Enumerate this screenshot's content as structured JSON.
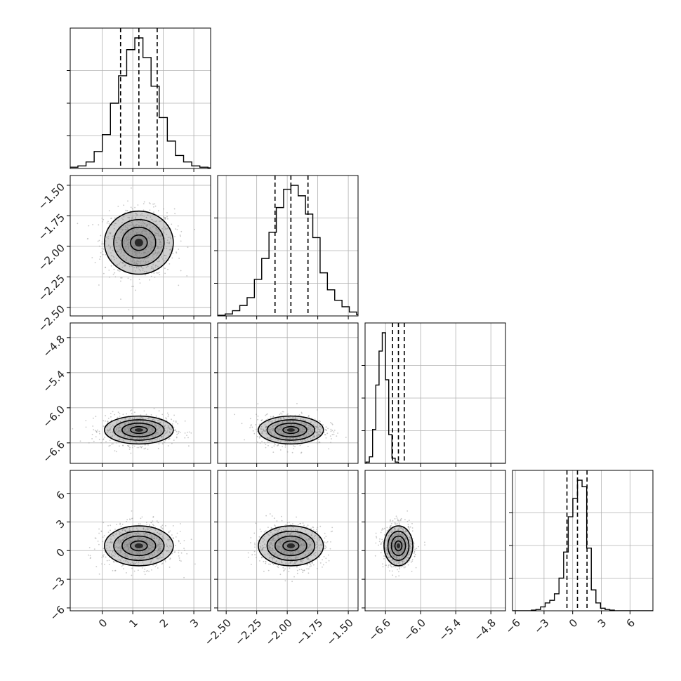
{
  "chart_data": {
    "type": "corner",
    "grid": true,
    "parameters": [
      {
        "ticks": [
          0,
          1,
          2,
          3
        ],
        "tick_labels": [
          "0",
          "1",
          "2",
          "3"
        ],
        "range": [
          -1.05,
          3.55
        ],
        "mean": 1.2,
        "std": 0.55,
        "quantiles": [
          0.6,
          1.2,
          1.8
        ],
        "hist_counts": [
          0.5,
          1,
          2,
          5,
          13,
          26,
          50,
          71,
          91,
          100,
          85,
          63,
          39,
          21,
          10,
          5,
          2,
          1,
          0.5
        ]
      },
      {
        "ticks": [
          -2.5,
          -2.25,
          -2.0,
          -1.75,
          -1.5
        ],
        "tick_labels": [
          "−2.50",
          "−2.25",
          "−2.00",
          "−1.75",
          "−1.50"
        ],
        "range": [
          -2.57,
          -1.42
        ],
        "mean": -1.97,
        "std": 0.13,
        "quantiles": [
          -2.1,
          -1.97,
          -1.83
        ],
        "hist_counts": [
          0.5,
          1.5,
          4,
          8,
          14,
          28,
          44,
          64,
          83,
          97,
          100,
          92,
          78,
          60,
          33,
          20,
          12,
          7,
          3,
          1
        ]
      },
      {
        "ticks": [
          -6.6,
          -6.0,
          -5.4,
          -4.8
        ],
        "tick_labels": [
          "−6.6",
          "−6.0",
          "−5.4",
          "−4.8"
        ],
        "range": [
          -6.95,
          -4.55
        ],
        "mean": -6.38,
        "std": 0.12,
        "quantiles": [
          -6.48,
          -6.38,
          -6.28
        ],
        "hist_counts": [
          1,
          5,
          26,
          60,
          86,
          100,
          64,
          22,
          4,
          1,
          0,
          0,
          0,
          0,
          0,
          0,
          0,
          0,
          0,
          0
        ]
      },
      {
        "ticks": [
          -6,
          -3,
          0,
          3,
          6
        ],
        "tick_labels": [
          "−6",
          "−3",
          "0",
          "3",
          "6"
        ],
        "range": [
          -6.3,
          8.4
        ],
        "mean": 0.5,
        "std": 1.05,
        "quantiles": [
          -0.6,
          0.5,
          1.5
        ],
        "hist_counts": [
          0.5,
          1,
          3,
          6,
          8,
          13,
          25,
          45,
          72,
          86,
          100,
          95,
          48,
          16,
          6,
          2,
          1,
          0.5,
          0,
          0
        ]
      }
    ],
    "x_tick_labels_bottom": [
      [
        "0",
        "1",
        "2",
        "3"
      ],
      [
        "−2.50",
        "−2.25",
        "−2.00",
        "−1.75",
        "−1.50"
      ],
      [
        "−6.6",
        "−6.0",
        "−5.4",
        "−4.8"
      ],
      [
        "−6",
        "−3",
        "0",
        "3",
        "6"
      ]
    ],
    "y_tick_labels_left": [
      [
        "−1.50",
        "−1.75",
        "−2.00",
        "−2.25",
        "−2.50"
      ],
      [
        "−4.8",
        "−5.4",
        "−6.0",
        "−6.6"
      ],
      [
        "6",
        "3",
        "0",
        "−3",
        "−6"
      ]
    ],
    "colors": {
      "line": "#000000",
      "grid": "#b0b0b0",
      "scatter": "#9a9a9a",
      "frame": "#000000"
    }
  }
}
